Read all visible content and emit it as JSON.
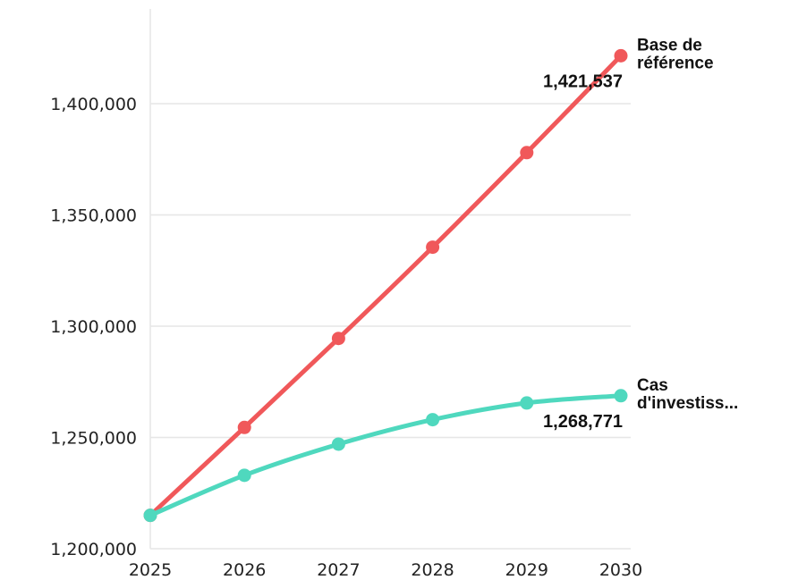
{
  "chart_data": {
    "type": "line",
    "title": "",
    "xlabel": "",
    "ylabel": "",
    "x": [
      2025,
      2026,
      2027,
      2028,
      2029,
      2030
    ],
    "x_tick_labels": [
      "2025",
      "2026",
      "2027",
      "2028",
      "2029",
      "2030"
    ],
    "ylim": [
      1200000,
      1425000
    ],
    "y_ticks": [
      1200000,
      1250000,
      1300000,
      1350000,
      1400000
    ],
    "y_tick_labels": [
      "1,200,000",
      "1,250,000",
      "1,300,000",
      "1,350,000",
      "1,400,000"
    ],
    "grid": "horizontal",
    "legend": "direct labels at line ends (right)",
    "series": [
      {
        "name": "Base de référence",
        "label_lines": [
          "Base de",
          "référence"
        ],
        "color": "#f0585a",
        "values": [
          1215000,
          1254500,
          1294500,
          1335500,
          1378000,
          1421537
        ],
        "end_label": "1,421,537"
      },
      {
        "name": "Cas d'investiss...",
        "label_lines": [
          "Cas",
          "d'investiss..."
        ],
        "color": "#4fd8be",
        "values": [
          1215000,
          1233000,
          1247000,
          1258000,
          1265500,
          1268771
        ],
        "end_label": "1,268,771"
      }
    ]
  }
}
